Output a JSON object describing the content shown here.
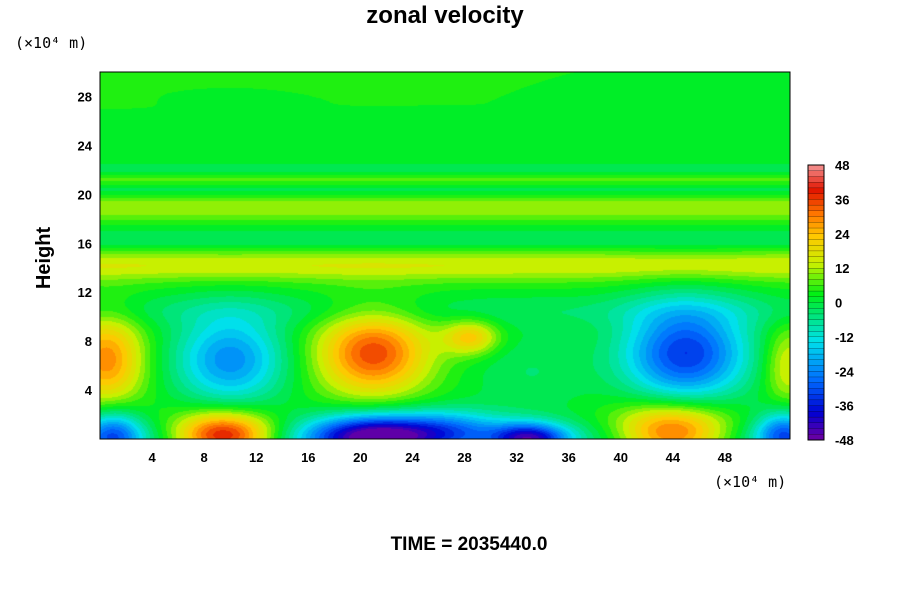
{
  "chart_data": {
    "type": "heatmap",
    "title": "zonal velocity",
    "xlabel": "",
    "ylabel": "Height",
    "x_unit": "(×10⁴ m)",
    "y_unit": "(×10⁴ m)",
    "xlim": [
      0,
      53
    ],
    "ylim": [
      0,
      30
    ],
    "x_ticks": [
      "4",
      "8",
      "12",
      "16",
      "20",
      "24",
      "28",
      "32",
      "36",
      "40",
      "44",
      "48"
    ],
    "y_ticks": [
      "4",
      "8",
      "12",
      "16",
      "20",
      "24",
      "28"
    ],
    "colorbar": {
      "min": -48,
      "max": 48,
      "ticks": [
        "48",
        "36",
        "24",
        "12",
        "0",
        "-12",
        "-24",
        "-36",
        "-48"
      ]
    },
    "background": 3,
    "features": [
      {
        "x": 9.5,
        "y": 0.3,
        "sx": 2.8,
        "sy": 1.3,
        "value": 46
      },
      {
        "x": 44,
        "y": 0.5,
        "sx": 3.2,
        "sy": 1.6,
        "value": 38
      },
      {
        "x": 21,
        "y": 0.2,
        "sx": 3.5,
        "sy": 1.3,
        "value": -44
      },
      {
        "x": 33,
        "y": 0.0,
        "sx": 2.0,
        "sy": 0.9,
        "value": -36
      },
      {
        "x": 1.0,
        "y": 0.3,
        "sx": 1.6,
        "sy": 1.5,
        "value": -26
      },
      {
        "x": 52.5,
        "y": 0.4,
        "sx": 1.5,
        "sy": 1.4,
        "value": -26
      },
      {
        "x": 27,
        "y": 0.8,
        "sx": 3.0,
        "sy": 1.2,
        "value": -18
      },
      {
        "x": 21,
        "y": 7.0,
        "sx": 3.0,
        "sy": 2.4,
        "value": 32
      },
      {
        "x": 0.5,
        "y": 6.5,
        "sx": 2.0,
        "sy": 2.6,
        "value": 26
      },
      {
        "x": 52.8,
        "y": 6.0,
        "sx": 1.3,
        "sy": 2.3,
        "value": 14
      },
      {
        "x": 10,
        "y": 6.5,
        "sx": 3.0,
        "sy": 2.6,
        "value": -26
      },
      {
        "x": 45,
        "y": 7.0,
        "sx": 3.4,
        "sy": 2.8,
        "value": -36
      },
      {
        "x": 28.5,
        "y": 8.3,
        "sx": 1.5,
        "sy": 1.0,
        "value": 20
      },
      {
        "x": 33,
        "y": 5.5,
        "sx": 3.5,
        "sy": 2.5,
        "value": -6
      }
    ],
    "bands": [
      {
        "y": 0.0,
        "h": 1.2,
        "value": -10
      },
      {
        "y": 10.5,
        "h": 1.0,
        "value": -5
      },
      {
        "y": 14.2,
        "h": 0.9,
        "value": 12
      },
      {
        "y": 16.3,
        "h": 0.7,
        "value": -6
      },
      {
        "y": 19.0,
        "h": 0.8,
        "value": 9
      },
      {
        "y": 20.3,
        "h": 0.5,
        "value": -6
      },
      {
        "y": 21.2,
        "h": 0.4,
        "value": 5
      },
      {
        "y": 22.0,
        "h": 0.4,
        "value": -5
      },
      {
        "y": 23.2,
        "h": 0.5,
        "value": -2
      }
    ]
  },
  "footer": {
    "time_label": "TIME = 2035440.0"
  }
}
